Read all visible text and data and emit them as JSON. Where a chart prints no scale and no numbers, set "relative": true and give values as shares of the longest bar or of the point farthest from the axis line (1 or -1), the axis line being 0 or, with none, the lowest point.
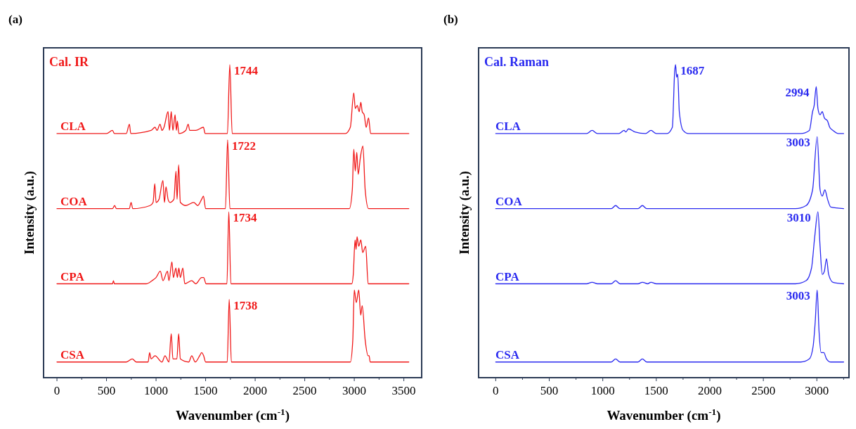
{
  "chart_data": [
    {
      "type": "line",
      "title": "(a)",
      "xlabel": "Wavenumber (cm$^{-1}$)",
      "ylabel": "Intensity (a.u.)",
      "relative": true,
      "xlim": [
        -135,
        3680
      ],
      "xticks": [
        0,
        {
          "value": 250,
          "label": null
        },
        500,
        {
          "value": 750,
          "label": null
        },
        1000,
        {
          "value": 1250,
          "label": null
        },
        1500,
        {
          "value": 1750,
          "label": null
        },
        2000,
        {
          "value": 2250,
          "label": null
        },
        2500,
        {
          "value": 2750,
          "label": null
        },
        3000,
        {
          "value": 3250,
          "label": null
        },
        3500
      ],
      "annotations": [
        "Cal. IR",
        {
          "text": "1744",
          "x": 1744,
          "y": 1.0
        },
        {
          "text": "1722",
          "x": 1722,
          "y": 0.76
        },
        {
          "text": "1734",
          "x": 1734,
          "y": 0.53
        },
        {
          "text": "1738",
          "x": 1738,
          "y": 0.25
        }
      ],
      "series": [
        {
          "name": "CLA",
          "color": "#f01818",
          "x": [
            0,
            500,
            560,
            580,
            700,
            731,
            745,
            950,
            990,
            1010,
            1040,
            1060,
            1080,
            1121,
            1135,
            1153,
            1170,
            1192,
            1205,
            1215,
            1230,
            1300,
            1324,
            1340,
            1400,
            1478,
            1495,
            1720,
            1744,
            1768,
            2910,
            2960,
            2995,
            3010,
            3030,
            3050,
            3066,
            3080,
            3100,
            3120,
            3144,
            3165,
            3550
          ],
          "values": [
            0.78,
            0.78,
            0.79,
            0.78,
            0.78,
            0.81,
            0.78,
            0.79,
            0.8,
            0.79,
            0.81,
            0.79,
            0.8,
            0.85,
            0.79,
            0.85,
            0.79,
            0.84,
            0.79,
            0.82,
            0.78,
            0.79,
            0.81,
            0.79,
            0.79,
            0.8,
            0.78,
            0.78,
            1.0,
            0.78,
            0.78,
            0.8,
            0.91,
            0.86,
            0.87,
            0.85,
            0.88,
            0.85,
            0.84,
            0.8,
            0.83,
            0.78,
            0.78
          ]
        },
        {
          "name": "COA",
          "color": "#f01818",
          "x": [
            0,
            560,
            582,
            600,
            730,
            748,
            765,
            940,
            970,
            987,
            1000,
            1030,
            1069,
            1085,
            1100,
            1121,
            1140,
            1180,
            1201,
            1212,
            1228,
            1245,
            1300,
            1380,
            1420,
            1460,
            1478,
            1500,
            1700,
            1722,
            1745,
            2950,
            2980,
            2995,
            3010,
            3025,
            3040,
            3060,
            3087,
            3110,
            3144,
            3550
          ],
          "values": [
            0.54,
            0.54,
            0.55,
            0.54,
            0.54,
            0.56,
            0.54,
            0.55,
            0.56,
            0.62,
            0.56,
            0.57,
            0.63,
            0.56,
            0.61,
            0.57,
            0.56,
            0.57,
            0.66,
            0.57,
            0.68,
            0.56,
            0.55,
            0.56,
            0.55,
            0.57,
            0.58,
            0.54,
            0.54,
            0.76,
            0.54,
            0.54,
            0.6,
            0.73,
            0.66,
            0.72,
            0.65,
            0.7,
            0.74,
            0.6,
            0.54,
            0.54
          ]
        },
        {
          "name": "CPA",
          "color": "#f01818",
          "x": [
            0,
            560,
            570,
            580,
            900,
            960,
            1000,
            1043,
            1070,
            1115,
            1130,
            1160,
            1175,
            1200,
            1215,
            1230,
            1245,
            1270,
            1290,
            1360,
            1400,
            1460,
            1480,
            1505,
            1715,
            1734,
            1755,
            2975,
            2990,
            3008,
            3018,
            3028,
            3045,
            3066,
            3085,
            3115,
            3140,
            3550
          ],
          "values": [
            0.3,
            0.3,
            0.31,
            0.3,
            0.3,
            0.31,
            0.32,
            0.34,
            0.31,
            0.34,
            0.31,
            0.37,
            0.32,
            0.35,
            0.32,
            0.35,
            0.32,
            0.35,
            0.3,
            0.31,
            0.3,
            0.32,
            0.32,
            0.3,
            0.3,
            0.53,
            0.3,
            0.3,
            0.33,
            0.44,
            0.41,
            0.45,
            0.42,
            0.44,
            0.4,
            0.42,
            0.3,
            0.3
          ]
        },
        {
          "name": "CSA",
          "color": "#f01818",
          "x": [
            0,
            700,
            760,
            800,
            920,
            935,
            950,
            990,
            1060,
            1090,
            1130,
            1153,
            1170,
            1210,
            1228,
            1245,
            1330,
            1360,
            1395,
            1440,
            1460,
            1480,
            1500,
            1718,
            1738,
            1760,
            2960,
            2985,
            3000,
            3020,
            3045,
            3065,
            3080,
            3110,
            3140,
            3150,
            3160,
            3550
          ],
          "values": [
            0.05,
            0.05,
            0.06,
            0.05,
            0.05,
            0.08,
            0.06,
            0.07,
            0.05,
            0.07,
            0.05,
            0.14,
            0.06,
            0.06,
            0.14,
            0.06,
            0.05,
            0.07,
            0.05,
            0.07,
            0.08,
            0.07,
            0.05,
            0.05,
            0.25,
            0.05,
            0.05,
            0.12,
            0.28,
            0.24,
            0.28,
            0.2,
            0.23,
            0.12,
            0.07,
            0.07,
            0.05,
            0.05
          ]
        }
      ]
    },
    {
      "type": "line",
      "title": "(b)",
      "xlabel": "Wavenumber (cm$^{-1}$)",
      "ylabel": "Intensity (a.u.)",
      "relative": true,
      "xlim": [
        -160,
        3300
      ],
      "xticks": [
        0,
        {
          "value": 250,
          "label": null
        },
        500,
        {
          "value": 750,
          "label": null
        },
        1000,
        {
          "value": 1250,
          "label": null
        },
        1500,
        {
          "value": 1750,
          "label": null
        },
        2000,
        {
          "value": 2250,
          "label": null
        },
        2500,
        {
          "value": 2750,
          "label": null
        },
        3000,
        {
          "value": 3250,
          "label": null
        }
      ],
      "annotations": [
        "Cal. Raman",
        {
          "text": "1687",
          "x": 1687,
          "y": 1.0
        },
        {
          "text": "2994",
          "x": 2994,
          "y": 0.93
        },
        {
          "text": "3003",
          "x": 3003,
          "y": 0.77
        },
        {
          "text": "3010",
          "x": 3010,
          "y": 0.53
        },
        {
          "text": "3003",
          "x": 3003,
          "y": 0.28
        }
      ],
      "series": [
        {
          "name": "CLA",
          "color": "#2a2af0",
          "x": [
            0,
            850,
            900,
            950,
            1150,
            1200,
            1215,
            1240,
            1300,
            1400,
            1450,
            1500,
            1600,
            1650,
            1672,
            1680,
            1690,
            1700,
            1715,
            1750,
            1800,
            2850,
            2930,
            2960,
            2975,
            2994,
            3010,
            3030,
            3050,
            3070,
            3100,
            3120,
            3150,
            3200,
            3250
          ],
          "values": [
            0.78,
            0.78,
            0.79,
            0.78,
            0.78,
            0.79,
            0.785,
            0.795,
            0.785,
            0.78,
            0.79,
            0.78,
            0.78,
            0.8,
            0.98,
            1.0,
            0.96,
            0.97,
            0.85,
            0.79,
            0.78,
            0.78,
            0.79,
            0.85,
            0.87,
            0.93,
            0.86,
            0.84,
            0.85,
            0.83,
            0.82,
            0.8,
            0.79,
            0.78,
            0.78
          ]
        },
        {
          "name": "COA",
          "color": "#2a2af0",
          "x": [
            0,
            1080,
            1120,
            1160,
            1330,
            1370,
            1410,
            2800,
            2900,
            2960,
            3003,
            3030,
            3050,
            3075,
            3100,
            3130,
            3250
          ],
          "values": [
            0.54,
            0.54,
            0.55,
            0.54,
            0.54,
            0.55,
            0.54,
            0.54,
            0.55,
            0.6,
            0.77,
            0.6,
            0.58,
            0.6,
            0.57,
            0.545,
            0.54
          ]
        },
        {
          "name": "CPA",
          "color": "#2a2af0",
          "x": [
            0,
            850,
            900,
            950,
            1080,
            1120,
            1160,
            1330,
            1370,
            1420,
            1450,
            1500,
            2800,
            2900,
            2950,
            2980,
            3010,
            3030,
            3050,
            3070,
            3090,
            3110,
            3150,
            3250
          ],
          "values": [
            0.3,
            0.3,
            0.305,
            0.3,
            0.3,
            0.31,
            0.3,
            0.3,
            0.305,
            0.3,
            0.305,
            0.3,
            0.3,
            0.31,
            0.35,
            0.45,
            0.53,
            0.42,
            0.33,
            0.34,
            0.38,
            0.33,
            0.305,
            0.3
          ]
        },
        {
          "name": "CSA",
          "color": "#2a2af0",
          "x": [
            0,
            1080,
            1120,
            1160,
            1330,
            1370,
            1410,
            2850,
            2930,
            2965,
            2985,
            3003,
            3020,
            3040,
            3065,
            3090,
            3130,
            3250
          ],
          "values": [
            0.05,
            0.05,
            0.06,
            0.05,
            0.05,
            0.06,
            0.05,
            0.05,
            0.06,
            0.1,
            0.18,
            0.28,
            0.15,
            0.08,
            0.08,
            0.06,
            0.05,
            0.05
          ]
        }
      ]
    }
  ]
}
